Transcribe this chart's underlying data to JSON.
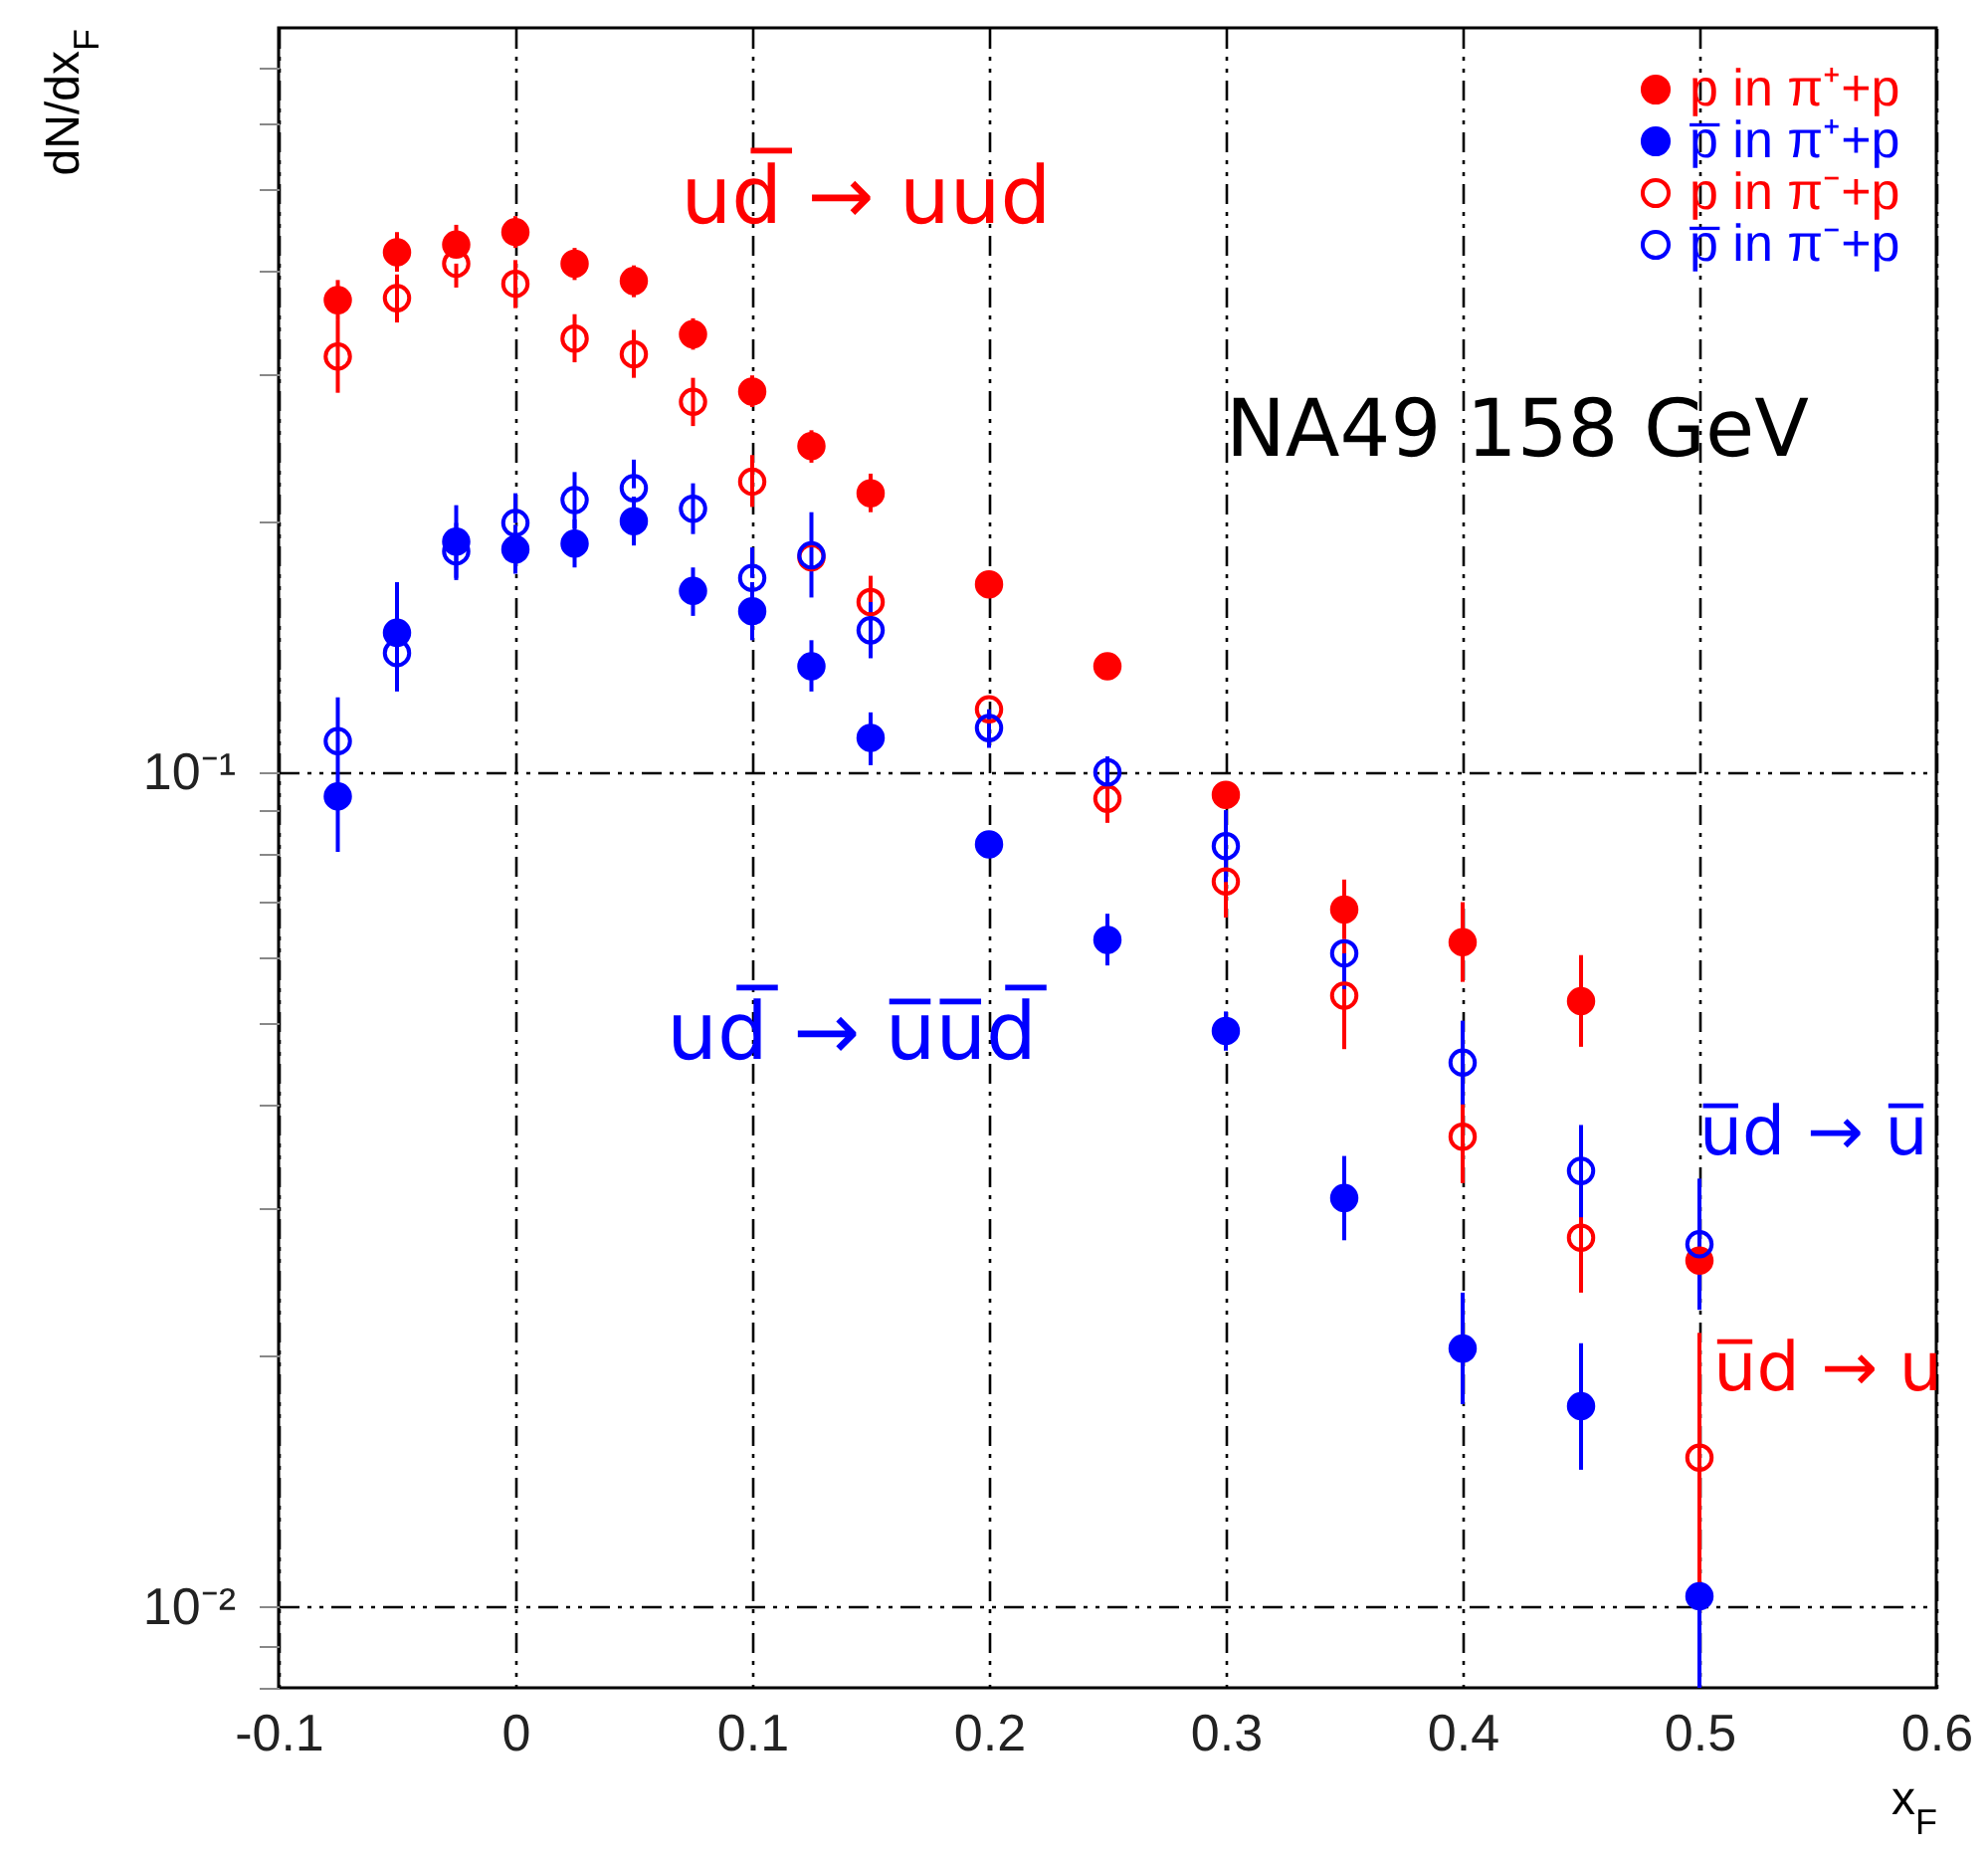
{
  "chart_data": {
    "type": "scatter",
    "xlabel": "x$_{F}$",
    "ylabel": "dN/dx$_{F}$",
    "log": "y",
    "grid": true,
    "legend": "top right",
    "marker": "circle",
    "xlim": [
      -0.1,
      0.6
    ],
    "xticks": [
      -0.1,
      0,
      0.1,
      0.2,
      0.3,
      0.4,
      0.5,
      0.6
    ],
    "ylim": [
      0.008,
      0.78
    ],
    "yticks": [
      {
        "value": 0.008,
        "label": null
      },
      {
        "value": 0.009,
        "label": null
      },
      {
        "value": 0.01,
        "label": "10⁻²"
      },
      {
        "value": 0.02,
        "label": null
      },
      {
        "value": 0.03,
        "label": null
      },
      {
        "value": 0.04,
        "label": null
      },
      {
        "value": 0.05,
        "label": null
      },
      {
        "value": 0.06,
        "label": null
      },
      {
        "value": 0.07,
        "label": null
      },
      {
        "value": 0.08,
        "label": null
      },
      {
        "value": 0.09,
        "label": null
      },
      {
        "value": 0.1,
        "label": "10⁻¹"
      },
      {
        "value": 0.2,
        "label": null
      },
      {
        "value": 0.3,
        "label": null
      },
      {
        "value": 0.4,
        "label": null
      },
      {
        "value": 0.5,
        "label": null
      },
      {
        "value": 0.6,
        "label": null
      },
      {
        "value": 0.7,
        "label": null
      }
    ],
    "x": [
      -0.075,
      -0.05,
      -0.025,
      0,
      0.025,
      0.05,
      0.075,
      0.1,
      0.125,
      0.15,
      0.2,
      0.25,
      0.3,
      0.35,
      0.4,
      0.45,
      0.5
    ],
    "series": [
      {
        "name": "p in π⁺+p",
        "color": "#ff0000",
        "values": [
          0.368,
          0.42,
          0.429,
          0.444,
          0.407,
          0.388,
          0.335,
          0.286,
          0.246,
          0.216,
          0.168,
          0.134,
          0.094,
          0.0685,
          0.0626,
          0.0532,
          0.026
        ],
        "errors": [
          [
            0.348,
            0.389
          ],
          [
            0.398,
            0.444
          ],
          [
            0.429,
            0.453
          ],
          [
            0.425,
            0.464
          ],
          [
            0.389,
            0.425
          ],
          [
            0.371,
            0.405
          ],
          [
            0.321,
            0.35
          ],
          [
            0.274,
            0.299
          ],
          [
            0.235,
            0.257
          ],
          [
            0.205,
            0.228
          ],
          null,
          null,
          null,
          [
            0.0631,
            0.0744
          ],
          [
            0.0561,
            0.0699
          ],
          [
            0.0469,
            0.0604
          ],
          null
        ]
      },
      {
        "name": "p̅ in π⁺+p",
        "color": "#0000ff",
        "values": [
          0.0936,
          0.147,
          0.189,
          0.185,
          0.188,
          0.2,
          0.165,
          0.156,
          0.134,
          0.11,
          0.082,
          0.063,
          0.049,
          0.0309,
          0.0204,
          0.0174,
          0.0103
        ],
        "errors": [
          [
            0.0803,
            0.0936
          ],
          [
            0.128,
            0.169
          ],
          [
            0.171,
            0.209
          ],
          [
            0.173,
            0.198
          ],
          [
            0.176,
            0.201
          ],
          [
            0.187,
            0.214
          ],
          [
            0.154,
            0.176
          ],
          [
            0.144,
            0.169
          ],
          [
            0.125,
            0.144
          ],
          [
            0.102,
            0.118
          ],
          null,
          [
            0.0587,
            0.0677
          ],
          [
            0.0464,
            0.0517
          ],
          [
            0.0275,
            0.0347
          ],
          [
            0.0175,
            0.0238
          ],
          [
            0.0146,
            0.0207
          ],
          [
            0.008,
            0.0112
          ]
        ]
      },
      {
        "name": "p in π⁻+p",
        "color": "#ff0000",
        "values": [
          0.315,
          0.37,
          0.407,
          0.385,
          0.331,
          0.317,
          0.278,
          0.223,
          0.181,
          0.16,
          0.119,
          0.093,
          0.074,
          0.054,
          0.0366,
          0.0277,
          0.0151
        ],
        "errors": [
          [
            0.285,
            0.348
          ],
          [
            0.346,
            0.395
          ],
          [
            0.381,
            0.407
          ],
          [
            0.36,
            0.411
          ],
          [
            0.31,
            0.354
          ],
          [
            0.297,
            0.339
          ],
          [
            0.26,
            0.297
          ],
          [
            0.208,
            0.24
          ],
          null,
          [
            0.149,
            0.172
          ],
          null,
          [
            0.087,
            0.1
          ],
          [
            0.067,
            0.081
          ],
          [
            0.0466,
            0.0626
          ],
          [
            0.0322,
            0.0415
          ],
          [
            0.0238,
            0.0323
          ],
          [
            0.0107,
            0.0213
          ]
        ]
      },
      {
        "name": "p̅ in π⁻+p",
        "color": "#0000ff",
        "values": [
          0.109,
          0.139,
          0.184,
          0.199,
          0.212,
          0.219,
          0.207,
          0.171,
          0.182,
          0.148,
          0.113,
          0.1,
          0.0816,
          0.0607,
          0.0449,
          0.0333,
          0.0272
        ],
        "errors": [
          [
            0.0966,
            0.123
          ],
          [
            0.125,
            0.155
          ],
          [
            0.17,
            0.199
          ],
          [
            0.199,
            0.216
          ],
          [
            0.196,
            0.229
          ],
          [
            0.219,
            0.237
          ],
          [
            0.193,
            0.222
          ],
          [
            0.171,
            0.186
          ],
          [
            0.162,
            0.205
          ],
          [
            0.137,
            0.16
          ],
          [
            0.107,
            0.119
          ],
          [
            0.0957,
            0.1045
          ],
          [
            0.0739,
            0.0901
          ],
          [
            0.055,
            0.0607
          ],
          [
            0.04,
            0.0504
          ],
          [
            0.0293,
            0.0378
          ],
          [
            0.0227,
            0.0326
          ]
        ]
      }
    ],
    "annotations": [
      "ud̅ → uud",
      "NA49 158 GeV",
      "ud̅ → u̅u̅d̅",
      "u̅d → u̅",
      "u̅d → u"
    ]
  }
}
